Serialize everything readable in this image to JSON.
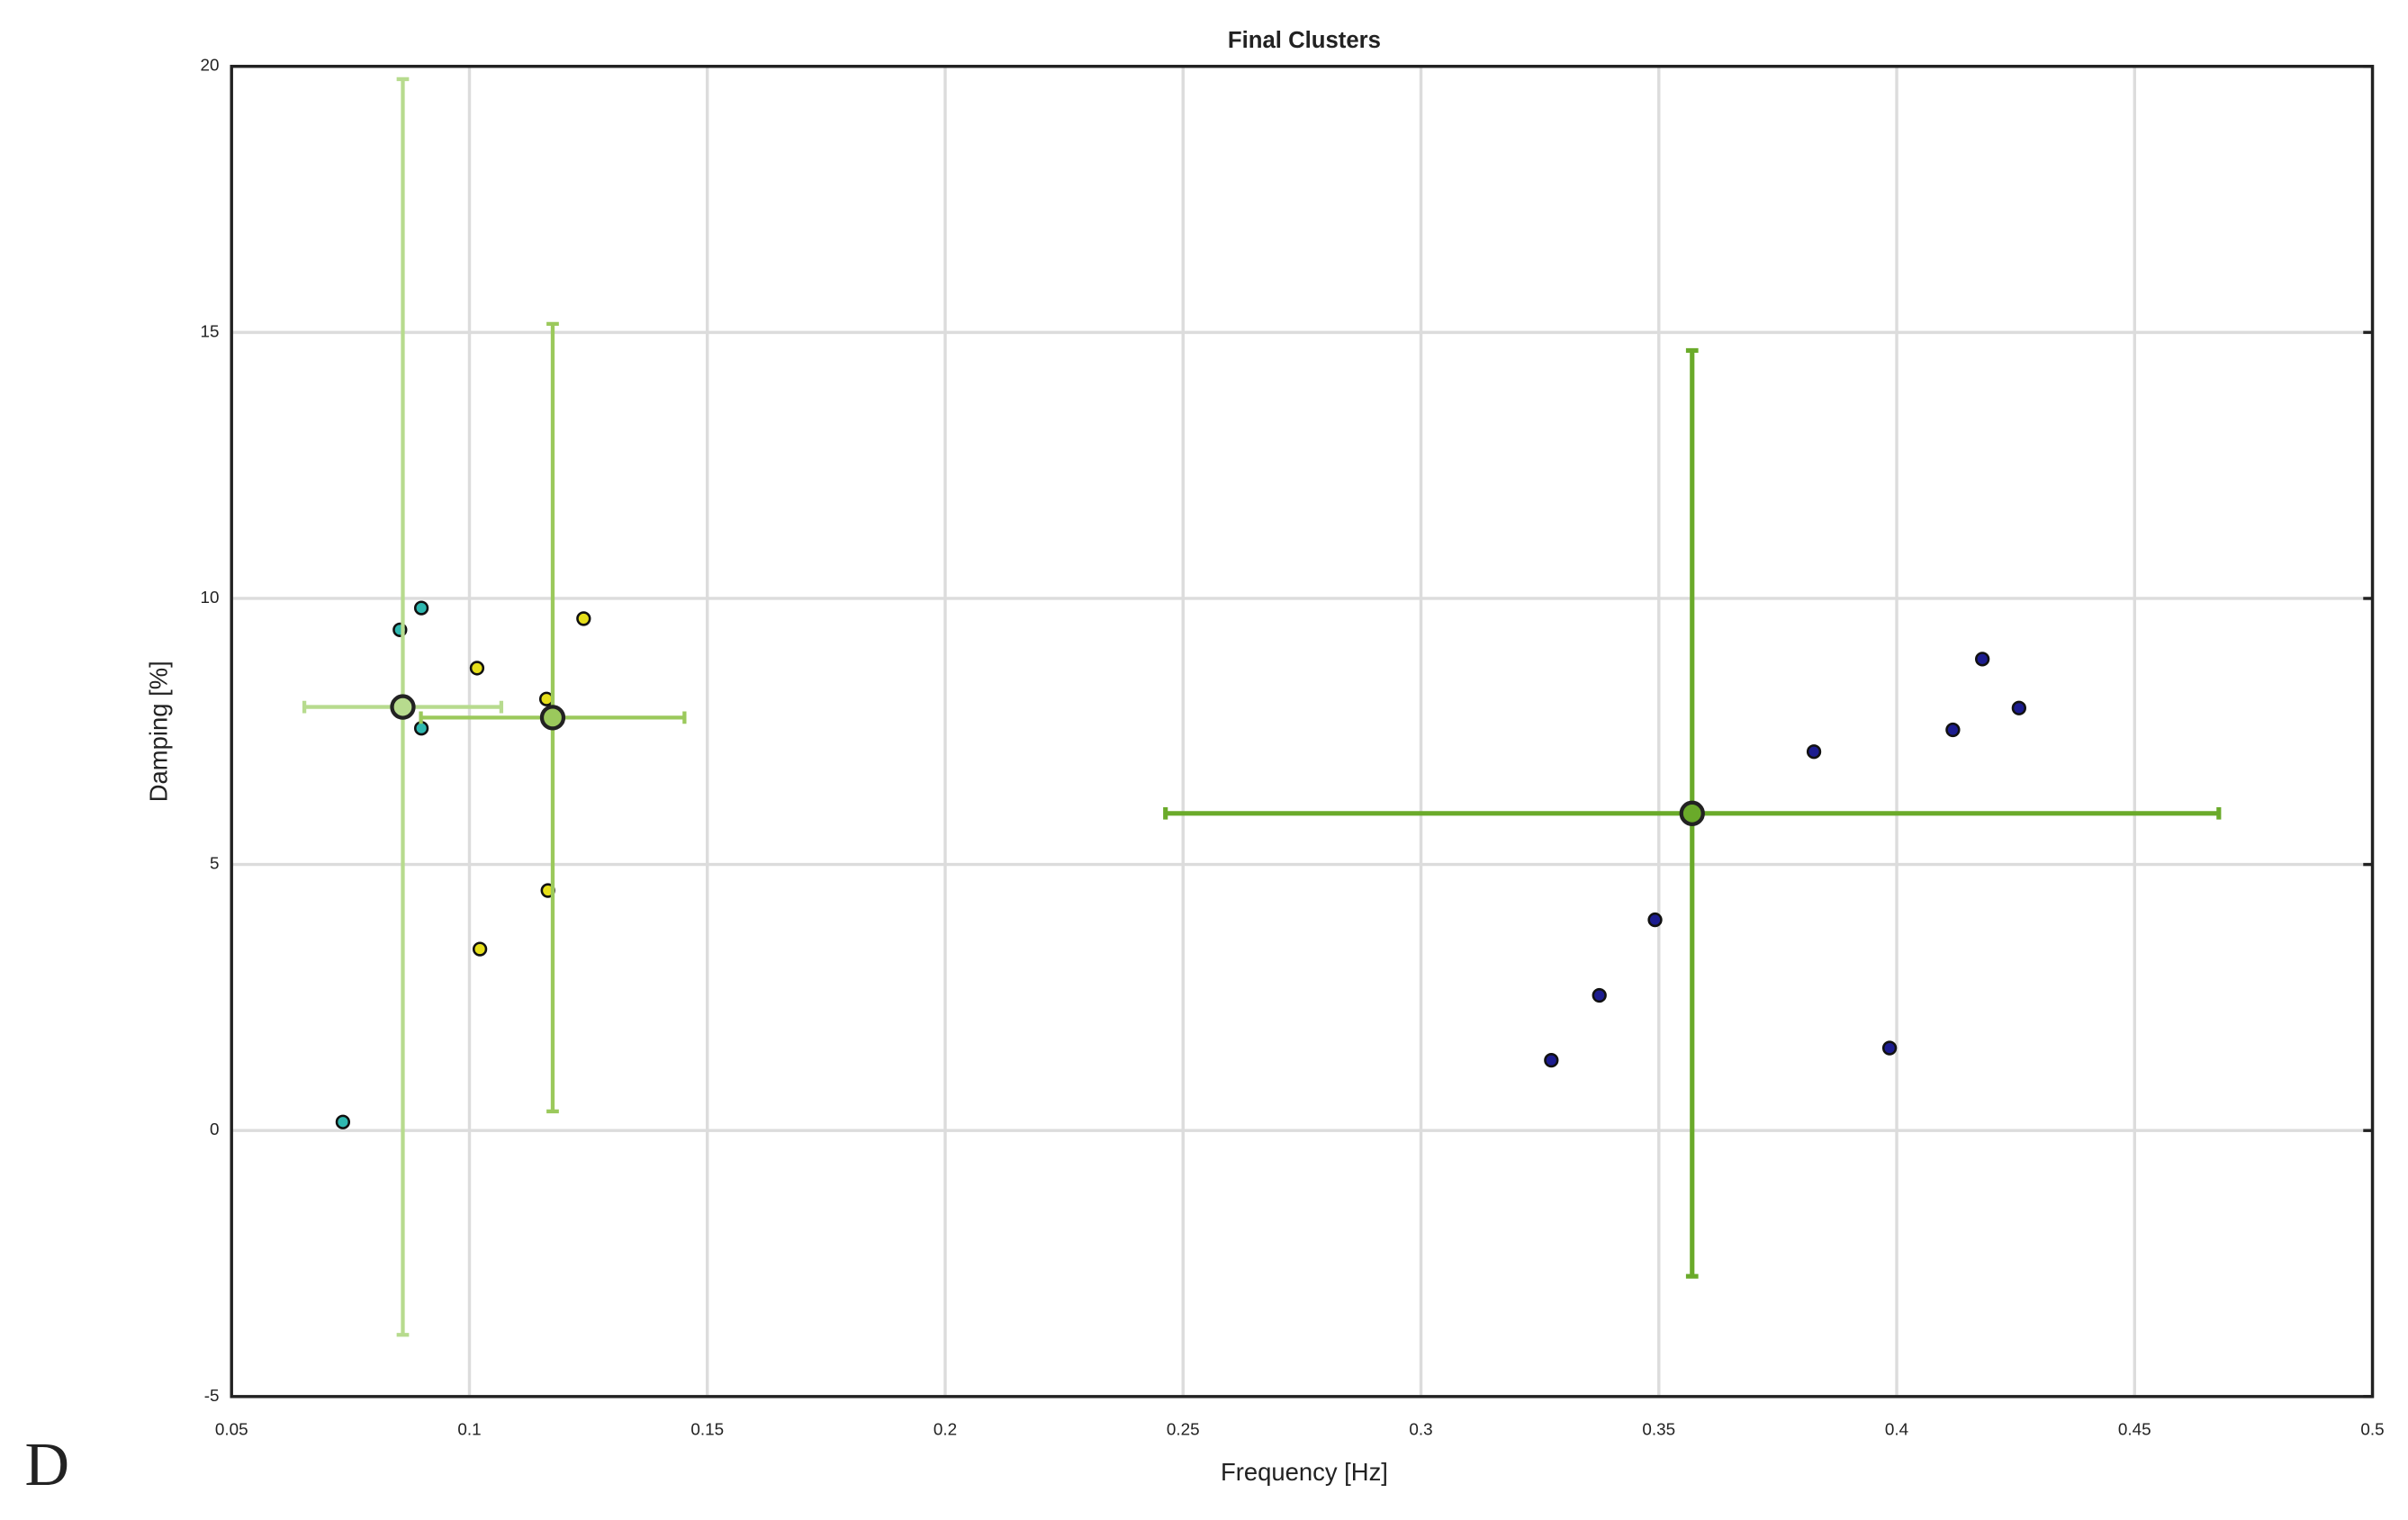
{
  "chart_data": {
    "type": "scatter",
    "title": "Final Clusters",
    "x_label": "Frequency [Hz]",
    "y_label": "Damping [%]",
    "panel_label": "D",
    "xlim": [
      0.05,
      0.5
    ],
    "ylim": [
      -5,
      20
    ],
    "xticks": [
      0.05,
      0.1,
      0.15,
      0.2,
      0.25,
      0.3,
      0.35,
      0.4,
      0.45,
      0.5
    ],
    "yticks": [
      -5,
      0,
      5,
      10,
      15,
      20
    ],
    "grid": true,
    "series": [
      {
        "color": "#2fb8b0",
        "x": [
          0.0734,
          0.0854,
          0.0899,
          0.0899
        ],
        "values": [
          0.16,
          9.41,
          9.82,
          7.56
        ]
      },
      {
        "color": "#e6df1a",
        "x": [
          0.1016,
          0.124,
          0.1162,
          0.1022,
          0.1165
        ],
        "values": [
          8.69,
          9.62,
          8.11,
          3.41,
          4.51
        ]
      },
      {
        "color": "#1c1c8f",
        "x": [
          0.3274,
          0.3375,
          0.3492,
          0.3826,
          0.3985,
          0.4118,
          0.418,
          0.4257
        ],
        "values": [
          1.32,
          2.54,
          3.96,
          7.12,
          1.55,
          7.53,
          8.86,
          7.94
        ]
      }
    ],
    "clusters": [
      {
        "color": "#b7db8e",
        "x": [
          0.086
        ],
        "values": [
          7.96
        ],
        "xerr": [
          0.0207
        ],
        "yerr": [
          11.8
        ]
      },
      {
        "color": "#9bc95c",
        "x": [
          0.1175
        ],
        "values": [
          7.76
        ],
        "xerr": [
          0.0277
        ],
        "yerr": [
          7.4
        ]
      },
      {
        "color": "#6aaa2a",
        "x": [
          0.357
        ],
        "values": [
          5.96
        ],
        "xerr": [
          0.1107
        ],
        "yerr": [
          8.7
        ]
      }
    ]
  }
}
